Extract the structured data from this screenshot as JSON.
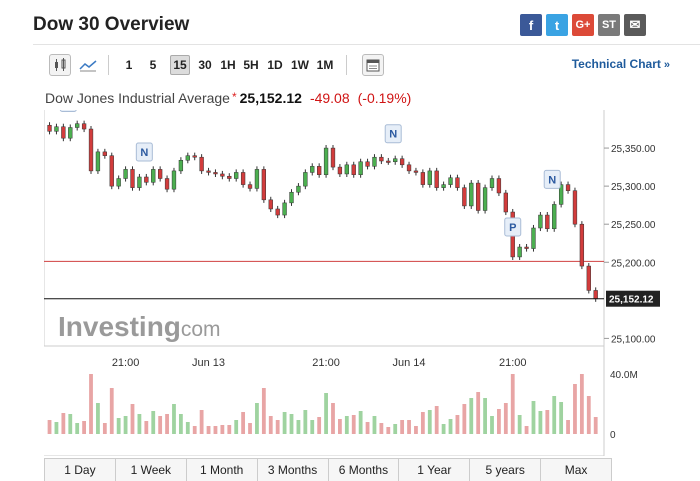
{
  "header": {
    "title": "Dow 30 Overview"
  },
  "share": [
    {
      "label": "f",
      "icon": "facebook-icon"
    },
    {
      "label": "t",
      "icon": "twitter-icon"
    },
    {
      "label": "G+",
      "icon": "google-plus-icon"
    },
    {
      "label": "ST",
      "icon": "stocktwits-icon"
    },
    {
      "label": "✉",
      "icon": "email-icon"
    }
  ],
  "toolbar": {
    "intervals": [
      "1",
      "5",
      "15",
      "30",
      "1H",
      "5H",
      "1D",
      "1W",
      "1M"
    ],
    "active_interval": "15",
    "technical_chart_label": "Technical Chart",
    "technical_chart_chevron": "»"
  },
  "quote": {
    "name": "Dow Jones Industrial Average",
    "marker": "*",
    "price": "25,152.12",
    "change": "-49.08",
    "change_pct": "(-0.19%)",
    "up_color": "#4caf50",
    "down_color": "#d23c3c"
  },
  "chart": {
    "watermark": "Investing",
    "watermark_suffix": ".com",
    "y_ticks": [
      "25,350.00",
      "25,300.00",
      "25,250.00",
      "25,200.00",
      "25,100.00"
    ],
    "x_ticks": [
      "21:00",
      "Jun 13",
      "21:00",
      "Jun 14",
      "21:00"
    ],
    "last_price_label": "25,152.12",
    "volume_max_label": "40.0M",
    "volume_zero_label": "0",
    "news_flags": [
      "N",
      "N",
      "N",
      "N"
    ],
    "prev_close_flag": "P"
  },
  "ranges": [
    "1 Day",
    "1 Week",
    "1 Month",
    "3 Months",
    "6 Months",
    "1 Year",
    "5 years",
    "Max"
  ],
  "chart_data": {
    "type": "candlestick",
    "title": "Dow Jones Industrial Average",
    "interval": "15",
    "y_axis_range": [
      25090,
      25400
    ],
    "y_ticks": [
      25350,
      25300,
      25250,
      25200,
      25100
    ],
    "prev_close": 25201.2,
    "last": 25152.12,
    "candles": [
      [
        25380,
        25372
      ],
      [
        25372,
        25378
      ],
      [
        25378,
        25363
      ],
      [
        25363,
        25377
      ],
      [
        25377,
        25382
      ],
      [
        25382,
        25375
      ],
      [
        25375,
        25320
      ],
      [
        25320,
        25345
      ],
      [
        25345,
        25340
      ],
      [
        25340,
        25300
      ],
      [
        25300,
        25310
      ],
      [
        25310,
        25322
      ],
      [
        25322,
        25298
      ],
      [
        25298,
        25312
      ],
      [
        25312,
        25305
      ],
      [
        25305,
        25322
      ],
      [
        25322,
        25310
      ],
      [
        25310,
        25296
      ],
      [
        25296,
        25320
      ],
      [
        25320,
        25334
      ],
      [
        25334,
        25340
      ],
      [
        25340,
        25338
      ],
      [
        25338,
        25320
      ],
      [
        25320,
        25318
      ],
      [
        25318,
        25316
      ],
      [
        25316,
        25313
      ],
      [
        25313,
        25310
      ],
      [
        25310,
        25318
      ],
      [
        25318,
        25302
      ],
      [
        25302,
        25297
      ],
      [
        25297,
        25322
      ],
      [
        25322,
        25282
      ],
      [
        25282,
        25270
      ],
      [
        25270,
        25262
      ],
      [
        25262,
        25278
      ],
      [
        25278,
        25292
      ],
      [
        25292,
        25300
      ],
      [
        25300,
        25318
      ],
      [
        25318,
        25326
      ],
      [
        25326,
        25315
      ],
      [
        25315,
        25350
      ],
      [
        25350,
        25325
      ],
      [
        25325,
        25316
      ],
      [
        25316,
        25328
      ],
      [
        25328,
        25315
      ],
      [
        25315,
        25332
      ],
      [
        25332,
        25326
      ],
      [
        25326,
        25338
      ],
      [
        25338,
        25333
      ],
      [
        25333,
        25332
      ],
      [
        25332,
        25336
      ],
      [
        25336,
        25328
      ],
      [
        25328,
        25320
      ],
      [
        25320,
        25318
      ],
      [
        25318,
        25302
      ],
      [
        25302,
        25320
      ],
      [
        25320,
        25298
      ],
      [
        25298,
        25302
      ],
      [
        25302,
        25311
      ],
      [
        25311,
        25298
      ],
      [
        25298,
        25274
      ],
      [
        25274,
        25304
      ],
      [
        25304,
        25268
      ],
      [
        25268,
        25298
      ],
      [
        25298,
        25310
      ],
      [
        25310,
        25291
      ],
      [
        25291,
        25266
      ],
      [
        25266,
        25207
      ],
      [
        25207,
        25220
      ],
      [
        25220,
        25218
      ],
      [
        25218,
        25245
      ],
      [
        25245,
        25262
      ],
      [
        25262,
        25244
      ],
      [
        25244,
        25276
      ],
      [
        25276,
        25302
      ],
      [
        25302,
        25294
      ],
      [
        25294,
        25250
      ],
      [
        25250,
        25195
      ],
      [
        25195,
        25163
      ],
      [
        25163,
        25152
      ]
    ],
    "volume_max": 40000000
  }
}
